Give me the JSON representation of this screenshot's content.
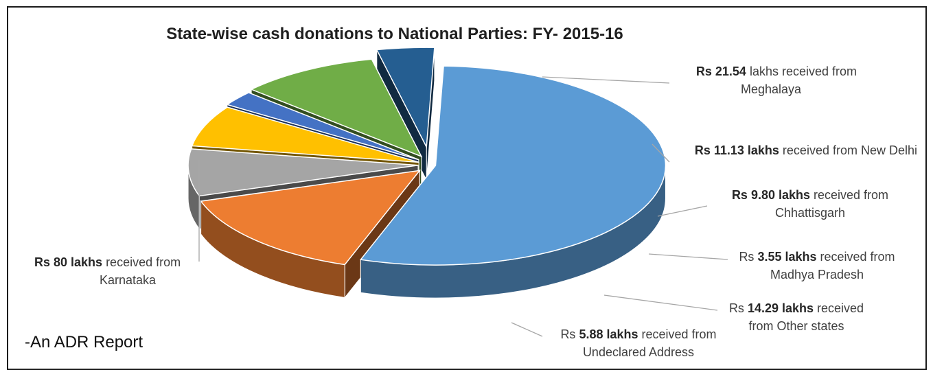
{
  "chart_data": {
    "type": "pie",
    "title": "State-wise cash donations to National Parties:  FY- 2015-16",
    "unit": "lakhs",
    "slices": [
      {
        "name": "Karnataka",
        "value": 80,
        "color": "#5b9bd5",
        "label": {
          "pre": "",
          "bold": "Rs 80 lakhs",
          "post": " received from",
          "line2": "Karnataka"
        }
      },
      {
        "name": "Meghalaya",
        "value": 21.54,
        "color": "#ed7d31",
        "label": {
          "pre": "",
          "bold": "Rs 21.54",
          "post": " lakhs received from",
          "line2": "Meghalaya"
        }
      },
      {
        "name": "New Delhi",
        "value": 11.13,
        "color": "#a5a5a5",
        "label": {
          "pre": "",
          "bold": "Rs 11.13 lakhs",
          "post": " received from New Delhi",
          "line2": ""
        }
      },
      {
        "name": "Chhattisgarh",
        "value": 9.8,
        "color": "#ffc000",
        "label": {
          "pre": "",
          "bold": "Rs 9.80 lakhs",
          "post": " received from",
          "line2": "Chhattisgarh"
        }
      },
      {
        "name": "Madhya Pradesh",
        "value": 3.55,
        "color": "#4472c4",
        "label": {
          "pre": "Rs ",
          "bold": "3.55 lakhs",
          "post": " received from",
          "line2": "Madhya Pradesh"
        }
      },
      {
        "name": "Other states",
        "value": 14.29,
        "color": "#70ad47",
        "label": {
          "pre": "Rs ",
          "bold": "14.29 lakhs",
          "post": " received",
          "line2": "from Other states"
        }
      },
      {
        "name": "Undeclared Address",
        "value": 5.88,
        "color": "#255e91",
        "label": {
          "pre": "Rs ",
          "bold": "5.88 lakhs",
          "post": " received from",
          "line2": "Undeclared Address"
        }
      }
    ]
  },
  "footer": "-An ADR Report"
}
